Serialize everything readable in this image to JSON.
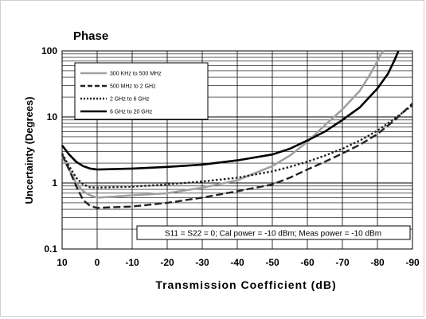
{
  "chart_data": {
    "type": "line",
    "title": "Phase",
    "xlabel": "Transmission Coefficient (dB)",
    "ylabel": "Uncertainty (Degrees)",
    "x_ticks": [
      10,
      0,
      -10,
      -20,
      -30,
      -40,
      -50,
      -60,
      -70,
      -80,
      -90
    ],
    "x_tick_labels": [
      "10",
      "0",
      "-10",
      "-20",
      "-30",
      "-40",
      "-50",
      "-60",
      "-70",
      "-80",
      "-90"
    ],
    "xlim": [
      10,
      -90
    ],
    "y_scale": "log",
    "ylim": [
      0.1,
      100
    ],
    "y_ticks": [
      0.1,
      1,
      10,
      100
    ],
    "y_tick_labels": [
      "0.1",
      "1",
      "10",
      "100"
    ],
    "grid": true,
    "legend_position": "top-left",
    "annotation": "S11 = S22 = 0; Cal power = -10 dBm; Meas power = -10 dBm",
    "series": [
      {
        "name": "300 KHz to 500 MHz",
        "color": "#a0a0a0",
        "style": "solid",
        "x": [
          10,
          8,
          6,
          4,
          2,
          0,
          -5,
          -10,
          -20,
          -30,
          -40,
          -50,
          -55,
          -60,
          -65,
          -70,
          -75,
          -78,
          -80,
          -81,
          -81.7
        ],
        "y": [
          2.5,
          1.6,
          1.0,
          0.75,
          0.65,
          0.6,
          0.62,
          0.65,
          0.7,
          0.85,
          1.1,
          1.8,
          2.6,
          4.2,
          7.5,
          13,
          25,
          45,
          70,
          90,
          100
        ]
      },
      {
        "name": "500 MHz to 2 GHz",
        "color": "#222222",
        "style": "dashed",
        "x": [
          10,
          8,
          6,
          4,
          2,
          0,
          -5,
          -10,
          -20,
          -30,
          -40,
          -50,
          -55,
          -60,
          -65,
          -70,
          -75,
          -80,
          -85,
          -90
        ],
        "y": [
          2.7,
          1.6,
          0.9,
          0.55,
          0.45,
          0.42,
          0.43,
          0.44,
          0.5,
          0.6,
          0.75,
          0.95,
          1.2,
          1.6,
          2.1,
          2.8,
          3.8,
          5.5,
          9.0,
          16
        ]
      },
      {
        "name": "2 GHz to 6 GHz",
        "color": "#222222",
        "style": "dotted",
        "x": [
          10,
          8,
          6,
          4,
          2,
          0,
          -10,
          -20,
          -30,
          -40,
          -50,
          -55,
          -60,
          -65,
          -70,
          -75,
          -80,
          -85,
          -90
        ],
        "y": [
          2.8,
          1.8,
          1.2,
          0.95,
          0.86,
          0.85,
          0.88,
          0.95,
          1.05,
          1.2,
          1.5,
          1.75,
          2.1,
          2.6,
          3.3,
          4.4,
          6.2,
          9.5,
          15
        ]
      },
      {
        "name": "6 GHz to 20 GHz",
        "color": "#000000",
        "style": "solid",
        "x": [
          10,
          8,
          6,
          4,
          2,
          0,
          -10,
          -20,
          -30,
          -40,
          -50,
          -55,
          -60,
          -65,
          -70,
          -75,
          -80,
          -83,
          -85,
          -86
        ],
        "y": [
          3.7,
          2.7,
          2.1,
          1.8,
          1.65,
          1.6,
          1.65,
          1.75,
          1.9,
          2.2,
          2.7,
          3.3,
          4.4,
          6.0,
          9.0,
          14,
          27,
          45,
          75,
          100
        ]
      }
    ]
  }
}
